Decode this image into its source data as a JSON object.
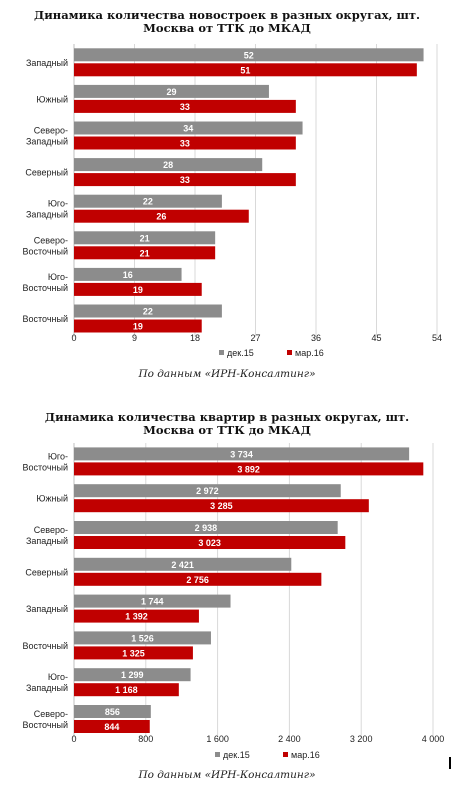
{
  "chart_data": [
    {
      "type": "bar",
      "orientation": "horizontal",
      "title_line1": "Динамика количества новостроек в разных округах, шт.",
      "title_line2": "Москва от ТТК до МКАД",
      "source": "По данным «ИРН-Консалтинг»",
      "categories": [
        [
          "Западный"
        ],
        [
          "Южный"
        ],
        [
          "Северо-",
          "Западный"
        ],
        [
          "Северный"
        ],
        [
          "Юго-",
          "Западный"
        ],
        [
          "Северо-",
          "Восточный"
        ],
        [
          "Юго-",
          "Восточный"
        ],
        [
          "Восточный"
        ]
      ],
      "series": [
        {
          "name": "дек.15",
          "color": "#8c8c8c",
          "values": [
            52,
            29,
            34,
            28,
            22,
            21,
            16,
            22
          ],
          "labels": [
            "52",
            "29",
            "34",
            "28",
            "22",
            "21",
            "16",
            "22"
          ]
        },
        {
          "name": "мар.16",
          "color": "#c00000",
          "values": [
            51,
            33,
            33,
            33,
            26,
            21,
            19,
            19
          ],
          "labels": [
            "51",
            "33",
            "33",
            "33",
            "26",
            "21",
            "19",
            "19"
          ]
        }
      ],
      "xlim": [
        0,
        54
      ],
      "ticks": [
        0,
        9,
        18,
        27,
        36,
        45,
        54
      ],
      "tick_labels": [
        "0",
        "9",
        "18",
        "27",
        "36",
        "45",
        "54"
      ],
      "grid": "vertical",
      "legend": "bottom"
    },
    {
      "type": "bar",
      "orientation": "horizontal",
      "title_line1": "Динамика количества квартир в разных округах, шт.",
      "title_line2": "Москва от ТТК до МКАД",
      "source": "По данным «ИРН-Консалтинг»",
      "categories": [
        [
          "Юго-",
          "Восточный"
        ],
        [
          "Южный"
        ],
        [
          "Северо-",
          "Западный"
        ],
        [
          "Северный"
        ],
        [
          "Западный"
        ],
        [
          "Восточный"
        ],
        [
          "Юго-",
          "Западный"
        ],
        [
          "Северо-",
          "Восточный"
        ]
      ],
      "series": [
        {
          "name": "дек.15",
          "color": "#8c8c8c",
          "values": [
            3734,
            2972,
            2938,
            2421,
            1744,
            1526,
            1299,
            856
          ],
          "labels": [
            "3 734",
            "2 972",
            "2 938",
            "2 421",
            "1 744",
            "1 526",
            "1 299",
            "856"
          ]
        },
        {
          "name": "мар.16",
          "color": "#c00000",
          "values": [
            3892,
            3285,
            3023,
            2756,
            1392,
            1325,
            1168,
            844
          ],
          "labels": [
            "3 892",
            "3 285",
            "3 023",
            "2 756",
            "1 392",
            "1 325",
            "1 168",
            "844"
          ]
        }
      ],
      "xlim": [
        0,
        4000
      ],
      "ticks": [
        0,
        800,
        1600,
        2400,
        3200,
        4000
      ],
      "tick_labels": [
        "0",
        "800",
        "1 600",
        "2 400",
        "3 200",
        "4 000"
      ],
      "grid": "vertical",
      "legend": "bottom"
    }
  ]
}
